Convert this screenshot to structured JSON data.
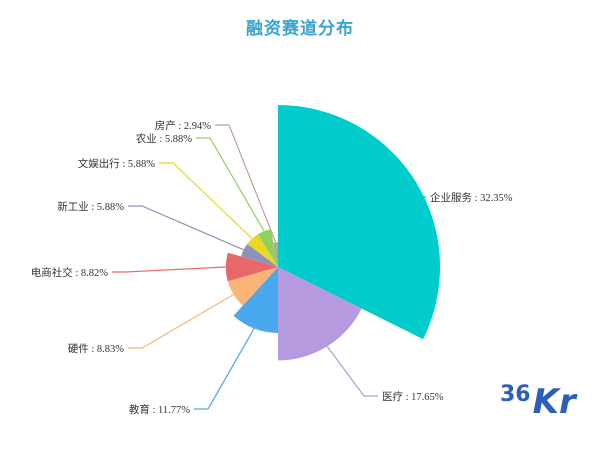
{
  "chart_data": {
    "type": "pie",
    "subtype": "rose",
    "title": "融资赛道分布",
    "slices": [
      {
        "name": "企业服务",
        "value": 32.35,
        "label": "企业服务 : 32.35%",
        "color": "#00cccc"
      },
      {
        "name": "医疗",
        "value": 17.65,
        "label": "医疗 : 17.65%",
        "color": "#b69ae0"
      },
      {
        "name": "教育",
        "value": 11.77,
        "label": "教育 : 11.77%",
        "color": "#4aa8ec"
      },
      {
        "name": "硬件",
        "value": 8.83,
        "label": "硬件 : 8.83%",
        "color": "#fbb478"
      },
      {
        "name": "电商社交",
        "value": 8.82,
        "label": "电商社交 : 8.82%",
        "color": "#e86868"
      },
      {
        "name": "新工业",
        "value": 5.88,
        "label": "新工业 : 5.88%",
        "color": "#8c93b8"
      },
      {
        "name": "文娱出行",
        "value": 5.88,
        "label": "文娱出行 : 5.88%",
        "color": "#e8d824"
      },
      {
        "name": "农业",
        "value": 5.88,
        "label": "农业 : 5.88%",
        "color": "#8fd060"
      },
      {
        "name": "房产",
        "value": 2.94,
        "label": "房产 : 2.94%",
        "color": "#c49d9d"
      }
    ],
    "legend": "none"
  },
  "logo": {
    "num": "36",
    "letters": "Kr"
  }
}
